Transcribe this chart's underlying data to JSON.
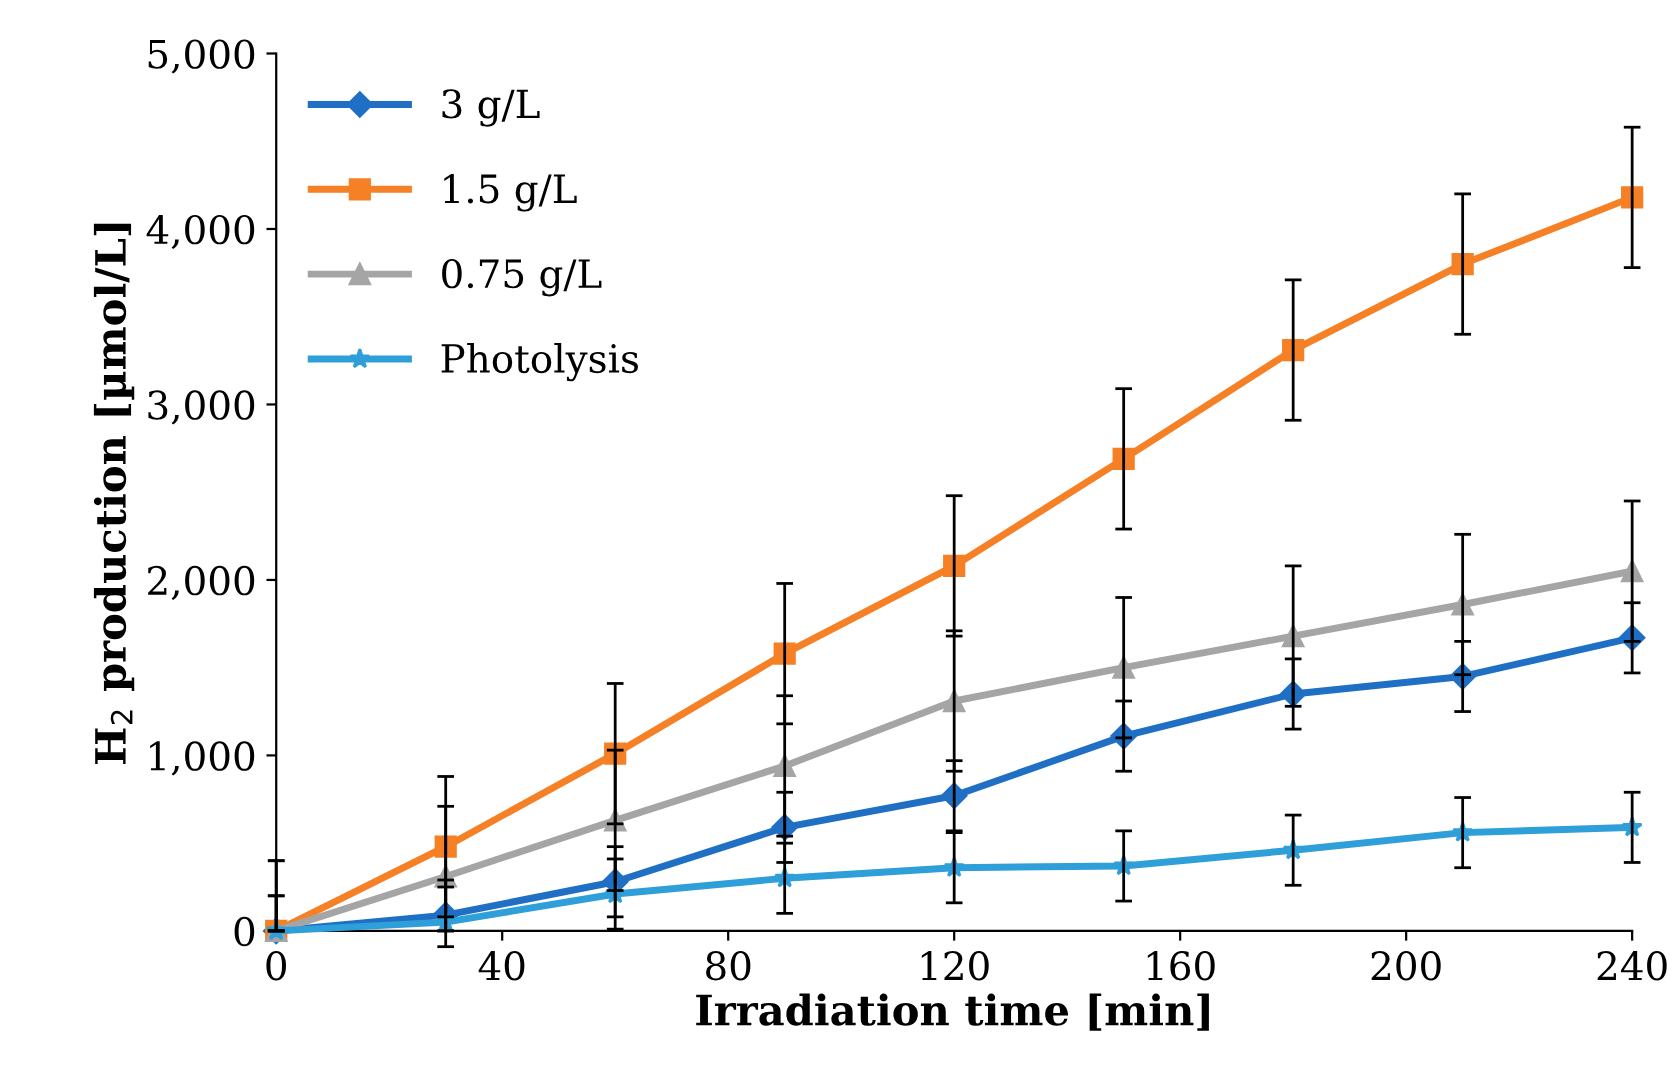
{
  "chart_data": {
    "type": "line",
    "xlabel": "Irradiation time [min]",
    "ylabel": "H$_{2}$ production [µmol/L]",
    "x": [
      0,
      30,
      60,
      90,
      120,
      150,
      180,
      210,
      240
    ],
    "series": [
      {
        "name": "3 g/L",
        "color": "#1f6fc5",
        "marker": "diamond",
        "values": [
          0,
          90,
          280,
          590,
          770,
          1110,
          1350,
          1450,
          1670
        ],
        "errors": [
          [
            0,
            200
          ],
          [
            0,
            290
          ],
          200,
          200,
          200,
          200,
          200,
          200,
          200
        ]
      },
      {
        "name": "1.5 g/L",
        "color": "#f58025",
        "marker": "square",
        "values": [
          0,
          480,
          1010,
          1580,
          2080,
          2690,
          3310,
          3800,
          4180
        ],
        "errors": [
          [
            0,
            400
          ],
          400,
          400,
          400,
          400,
          400,
          400,
          400,
          400
        ]
      },
      {
        "name": "0.75 g/L",
        "color": "#a5a5a5",
        "marker": "triangle",
        "values": [
          0,
          310,
          630,
          940,
          1310,
          1500,
          1680,
          1860,
          2050
        ],
        "errors": [
          [
            0,
            400
          ],
          400,
          400,
          400,
          400,
          400,
          400,
          400,
          400
        ]
      },
      {
        "name": "Photolysis",
        "color": "#2e9fd8",
        "marker": "star",
        "values": [
          0,
          50,
          210,
          300,
          360,
          370,
          460,
          560,
          590
        ],
        "errors": [
          [
            0,
            200
          ],
          [
            0,
            250
          ],
          200,
          200,
          200,
          200,
          200,
          200,
          200
        ]
      }
    ],
    "xlim": [
      0,
      240
    ],
    "xticks": [
      0,
      40,
      80,
      120,
      160,
      200,
      240
    ],
    "ylim": [
      0,
      5000
    ],
    "yticks": [
      {
        "value": 0,
        "label": "0"
      },
      {
        "value": 1000,
        "label": "1,000"
      },
      {
        "value": 2000,
        "label": "2,000"
      },
      {
        "value": 3000,
        "label": "3,000"
      },
      {
        "value": 4000,
        "label": "4,000"
      },
      {
        "value": 5000,
        "label": "5,000"
      }
    ],
    "grid": false,
    "legend": "top left",
    "line_style": "solid"
  }
}
